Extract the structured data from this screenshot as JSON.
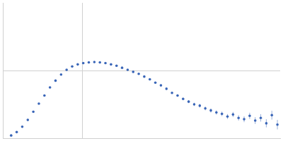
{
  "chart_data": {
    "type": "scatter",
    "color": "#3a66b8",
    "marker": "circle",
    "grid": true,
    "tick_labels": false,
    "xlim": [
      0,
      400
    ],
    "ylim": [
      0,
      200
    ],
    "xticks": [
      115
    ],
    "yticks": [
      100
    ],
    "x": [
      12,
      20,
      28,
      36,
      44,
      52,
      60,
      68,
      76,
      84,
      92,
      100,
      108,
      116,
      124,
      132,
      140,
      148,
      156,
      164,
      172,
      180,
      188,
      196,
      204,
      212,
      220,
      228,
      236,
      244,
      252,
      260,
      268,
      276,
      284,
      292,
      300,
      308,
      316,
      324,
      332,
      340,
      348,
      356,
      364,
      372,
      380,
      388,
      396
    ],
    "values": [
      4,
      9,
      17,
      27,
      39,
      51,
      63,
      75,
      85,
      94,
      101,
      106,
      109,
      111,
      112,
      112.5,
      112,
      111,
      109,
      107,
      104,
      101,
      98,
      95,
      91,
      87,
      82,
      78,
      73,
      67,
      63,
      58,
      54,
      50,
      48,
      44,
      41,
      38,
      36,
      32,
      35,
      30,
      28,
      33,
      26,
      30,
      22,
      34,
      20
    ],
    "errors": [
      0.5,
      0.5,
      0.5,
      0.5,
      0.5,
      0.5,
      0.5,
      0.5,
      0.5,
      0.5,
      0.5,
      0.5,
      0.5,
      0.5,
      0.5,
      0.5,
      0.5,
      0.5,
      0.5,
      0.6,
      0.6,
      0.7,
      0.8,
      0.9,
      1,
      1,
      1.2,
      1.3,
      1.5,
      1.6,
      1.8,
      2,
      2.2,
      2.4,
      2.6,
      2.8,
      3,
      3.2,
      3.4,
      3.6,
      3.8,
      4,
      4.3,
      4.6,
      5,
      5.5,
      6,
      6.5,
      7
    ]
  }
}
